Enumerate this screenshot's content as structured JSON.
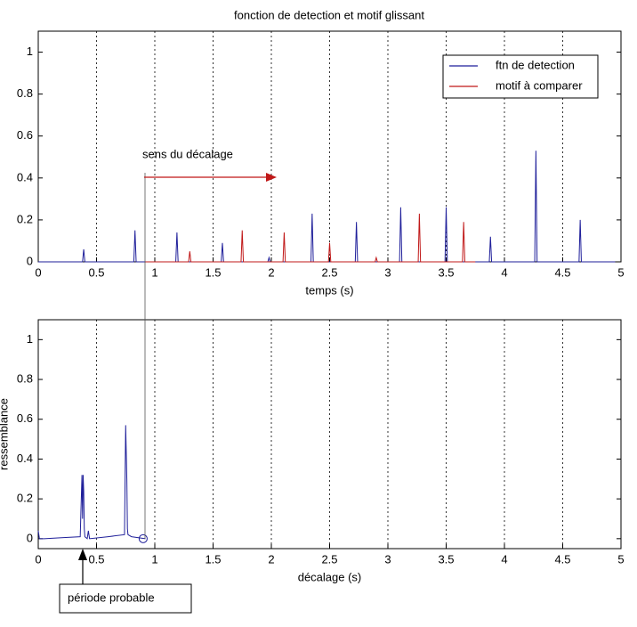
{
  "chart_data": [
    {
      "type": "line",
      "title": "fonction de detection et motif glissant",
      "xlabel": "temps (s)",
      "xlim": [
        0,
        5
      ],
      "ylim": [
        0,
        1.1
      ],
      "xticks": [
        0,
        0.5,
        1,
        1.5,
        2,
        2.5,
        3,
        3.5,
        4,
        4.5,
        5
      ],
      "yticks": [
        0,
        0.2,
        0.4,
        0.6,
        0.8,
        1
      ],
      "xgrid": true,
      "legend": "northeast",
      "annotations": [
        "sens du décalage"
      ],
      "series": [
        {
          "name": "ftn de detection",
          "color": "#1f1f9a",
          "x": [
            0,
            0.38,
            0.39,
            0.4,
            0.82,
            0.83,
            0.84,
            1.18,
            1.19,
            1.2,
            1.57,
            1.58,
            1.59,
            1.97,
            1.98,
            1.99,
            2.34,
            2.35,
            2.36,
            2.72,
            2.73,
            2.74,
            3.1,
            3.11,
            3.12,
            3.49,
            3.5,
            3.51,
            3.87,
            3.88,
            3.89,
            4.26,
            4.27,
            4.28,
            4.64,
            4.65,
            4.66,
            4.95
          ],
          "values": [
            0,
            0,
            0.06,
            0,
            0,
            0.15,
            0,
            0,
            0.14,
            0,
            0,
            0.09,
            0,
            0,
            0.02,
            0,
            0,
            0.23,
            0,
            0,
            0.19,
            0,
            0,
            0.26,
            0,
            0,
            0.26,
            0,
            0,
            0.12,
            0,
            0,
            0.53,
            0,
            0,
            0.2,
            0,
            0
          ]
        },
        {
          "name": "motif à comparer",
          "color": "#c01818",
          "x": [
            0.92,
            1.29,
            1.3,
            1.31,
            1.74,
            1.75,
            1.76,
            2.1,
            2.11,
            2.12,
            2.49,
            2.5,
            2.51,
            2.89,
            2.9,
            2.91,
            3.26,
            3.27,
            3.28,
            3.64,
            3.65,
            3.66,
            3.75
          ],
          "values": [
            0,
            0,
            0.05,
            0,
            0,
            0.15,
            0,
            0,
            0.14,
            0,
            0,
            0.09,
            0,
            0,
            0.02,
            0,
            0,
            0.23,
            0,
            0,
            0.19,
            0,
            0
          ]
        }
      ]
    },
    {
      "type": "line",
      "xlabel": "décalage (s)",
      "ylabel": "ressemblance",
      "xlim": [
        0,
        5
      ],
      "ylim": [
        -0.05,
        1.1
      ],
      "xticks": [
        0,
        0.5,
        1,
        1.5,
        2,
        2.5,
        3,
        3.5,
        4,
        4.5,
        5
      ],
      "yticks": [
        0,
        0.2,
        0.4,
        0.6,
        0.8,
        1
      ],
      "xgrid": true,
      "annotations": [
        "période probable"
      ],
      "series": [
        {
          "color": "#1f1f9a",
          "x": [
            0,
            0.01,
            0.05,
            0.2,
            0.36,
            0.375,
            0.38,
            0.385,
            0.39,
            0.395,
            0.4,
            0.42,
            0.43,
            0.44,
            0.6,
            0.74,
            0.75,
            0.76,
            0.765,
            0.77,
            0.8,
            0.92
          ],
          "values": [
            0.04,
            0,
            0,
            0.005,
            0.01,
            0.32,
            0.1,
            0.32,
            0.24,
            0.05,
            0.01,
            0,
            0.04,
            0,
            0.01,
            0.02,
            0.57,
            0.3,
            0.05,
            0.02,
            0.01,
            0
          ]
        }
      ],
      "marker": {
        "x": 0.9,
        "y": 0
      }
    }
  ]
}
